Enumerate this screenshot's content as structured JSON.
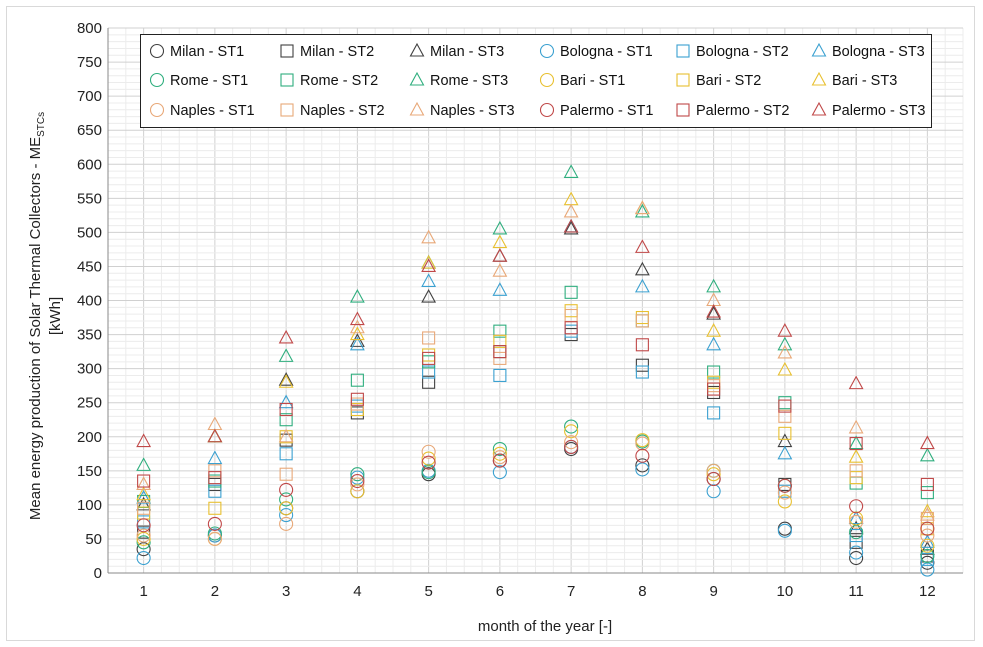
{
  "chart_data": {
    "type": "scatter",
    "title": "",
    "xlabel": "month of the year [-]",
    "ylabel_line1": "Mean energy production of Solar Thermal Collectors - ME",
    "ylabel_sub": "STCs",
    "ylabel_line2": "[kWh]",
    "xlim": [
      0.5,
      12.5
    ],
    "ylim": [
      0,
      800
    ],
    "y_step": 50,
    "x": [
      1,
      2,
      3,
      4,
      5,
      6,
      7,
      8,
      9,
      10,
      11,
      12
    ],
    "x_tick_labels": [
      "1",
      "2",
      "3",
      "4",
      "5",
      "6",
      "7",
      "8",
      "9",
      "10",
      "11",
      "12"
    ],
    "y_tick_labels": [
      "0",
      "50",
      "100",
      "150",
      "200",
      "250",
      "300",
      "350",
      "400",
      "450",
      "500",
      "550",
      "600",
      "650",
      "700",
      "750",
      "800"
    ],
    "grid": true,
    "legend_position": "top",
    "legend_columns": 6,
    "series": [
      {
        "name": "Milan - ST1",
        "marker": "circle",
        "color": "#404040",
        "values": [
          35,
          55,
          95,
          120,
          145,
          165,
          182,
          158,
          138,
          65,
          22,
          15
        ]
      },
      {
        "name": "Milan - ST2",
        "marker": "square",
        "color": "#404040",
        "values": [
          60,
          130,
          195,
          235,
          280,
          325,
          350,
          305,
          265,
          130,
          45,
          25
        ]
      },
      {
        "name": "Milan - ST3",
        "marker": "triangle",
        "color": "#404040",
        "values": [
          100,
          200,
          283,
          340,
          405,
          465,
          505,
          445,
          380,
          193,
          65,
          35
        ]
      },
      {
        "name": "Bologna - ST1",
        "marker": "circle",
        "color": "#3aa0d0",
        "values": [
          22,
          55,
          85,
          140,
          150,
          148,
          185,
          152,
          120,
          62,
          30,
          5
        ]
      },
      {
        "name": "Bologna - ST2",
        "marker": "square",
        "color": "#3aa0d0",
        "values": [
          75,
          120,
          175,
          245,
          295,
          290,
          355,
          295,
          235,
          120,
          55,
          20
        ]
      },
      {
        "name": "Bologna - ST3",
        "marker": "triangle",
        "color": "#3aa0d0",
        "values": [
          110,
          168,
          250,
          335,
          428,
          415,
          508,
          420,
          335,
          175,
          80,
          45
        ]
      },
      {
        "name": "Rome - ST1",
        "marker": "circle",
        "color": "#2fae7e",
        "values": [
          45,
          58,
          108,
          145,
          148,
          182,
          215,
          193,
          150,
          128,
          60,
          25
        ]
      },
      {
        "name": "Rome - ST2",
        "marker": "square",
        "color": "#2fae7e",
        "values": [
          105,
          135,
          225,
          283,
          310,
          355,
          412,
          370,
          295,
          250,
          132,
          118
        ]
      },
      {
        "name": "Rome - ST3",
        "marker": "triangle",
        "color": "#2fae7e",
        "values": [
          158,
          200,
          318,
          405,
          455,
          505,
          588,
          530,
          420,
          335,
          190,
          172
        ]
      },
      {
        "name": "Bari - ST1",
        "marker": "circle",
        "color": "#e8c030",
        "values": [
          50,
          50,
          95,
          120,
          168,
          175,
          208,
          195,
          145,
          105,
          80,
          40
        ]
      },
      {
        "name": "Bari - ST2",
        "marker": "square",
        "color": "#e8c030",
        "values": [
          88,
          95,
          200,
          240,
          320,
          340,
          385,
          375,
          280,
          205,
          140,
          65
        ]
      },
      {
        "name": "Bari - ST3",
        "marker": "triangle",
        "color": "#e8c030",
        "values": [
          115,
          200,
          280,
          350,
          455,
          485,
          548,
          535,
          355,
          298,
          170,
          90
        ]
      },
      {
        "name": "Naples - ST1",
        "marker": "circle",
        "color": "#e8a878",
        "values": [
          55,
          50,
          72,
          130,
          178,
          170,
          192,
          190,
          150,
          118,
          75,
          55
        ]
      },
      {
        "name": "Naples - ST2",
        "marker": "square",
        "color": "#e8a878",
        "values": [
          95,
          150,
          145,
          248,
          345,
          315,
          378,
          370,
          275,
          230,
          150,
          80
        ]
      },
      {
        "name": "Naples - ST3",
        "marker": "triangle",
        "color": "#e8a878",
        "values": [
          130,
          218,
          200,
          360,
          492,
          443,
          530,
          535,
          400,
          323,
          213,
          85
        ]
      },
      {
        "name": "Palermo - ST1",
        "marker": "circle",
        "color": "#c04848",
        "values": [
          70,
          72,
          122,
          135,
          162,
          165,
          185,
          172,
          138,
          128,
          98,
          65
        ]
      },
      {
        "name": "Palermo - ST2",
        "marker": "square",
        "color": "#c04848",
        "values": [
          135,
          140,
          240,
          255,
          315,
          325,
          360,
          335,
          270,
          245,
          190,
          130
        ]
      },
      {
        "name": "Palermo - ST3",
        "marker": "triangle",
        "color": "#c04848",
        "values": [
          193,
          200,
          345,
          372,
          450,
          465,
          508,
          478,
          383,
          355,
          278,
          190
        ]
      }
    ]
  }
}
